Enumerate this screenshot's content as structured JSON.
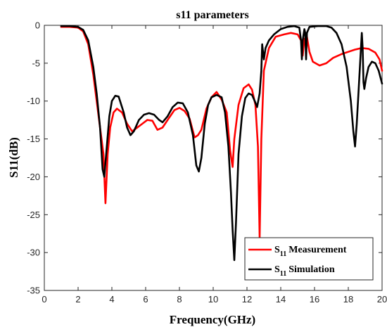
{
  "chart_data": {
    "type": "line",
    "title": "s11 parameters",
    "xlabel": "Frequency(GHz)",
    "ylabel": "S11(dB)",
    "xlim": [
      0,
      20
    ],
    "ylim": [
      -35,
      0
    ],
    "xticks": [
      0,
      2,
      4,
      6,
      8,
      10,
      12,
      14,
      16,
      18,
      20
    ],
    "yticks": [
      0,
      -5,
      -10,
      -15,
      -20,
      -25,
      -30,
      -35
    ],
    "grid": false,
    "legend_position": "bottom-right",
    "series": [
      {
        "name_main": "S",
        "name_sub": "11",
        "name_rest": "Measurement",
        "color": "#ff0000",
        "points": [
          [
            1.0,
            -0.2
          ],
          [
            1.5,
            -0.2
          ],
          [
            2.0,
            -0.3
          ],
          [
            2.3,
            -0.8
          ],
          [
            2.6,
            -2.5
          ],
          [
            2.9,
            -6.5
          ],
          [
            3.1,
            -10.0
          ],
          [
            3.3,
            -13.5
          ],
          [
            3.5,
            -17.0
          ],
          [
            3.62,
            -23.5
          ],
          [
            3.75,
            -17.0
          ],
          [
            3.9,
            -13.5
          ],
          [
            4.1,
            -11.5
          ],
          [
            4.3,
            -11.0
          ],
          [
            4.6,
            -11.5
          ],
          [
            4.9,
            -13.0
          ],
          [
            5.2,
            -14.0
          ],
          [
            5.5,
            -13.5
          ],
          [
            5.8,
            -13.0
          ],
          [
            6.1,
            -12.5
          ],
          [
            6.4,
            -12.6
          ],
          [
            6.7,
            -13.8
          ],
          [
            7.0,
            -13.5
          ],
          [
            7.3,
            -12.5
          ],
          [
            7.7,
            -11.2
          ],
          [
            8.0,
            -10.9
          ],
          [
            8.3,
            -11.3
          ],
          [
            8.6,
            -12.3
          ],
          [
            8.9,
            -14.8
          ],
          [
            9.1,
            -14.5
          ],
          [
            9.3,
            -13.8
          ],
          [
            9.6,
            -11.0
          ],
          [
            9.9,
            -9.5
          ],
          [
            10.2,
            -8.8
          ],
          [
            10.5,
            -9.8
          ],
          [
            10.8,
            -11.5
          ],
          [
            11.0,
            -16.5
          ],
          [
            11.15,
            -18.7
          ],
          [
            11.25,
            -15.0
          ],
          [
            11.5,
            -10.5
          ],
          [
            11.8,
            -8.3
          ],
          [
            12.1,
            -7.8
          ],
          [
            12.3,
            -8.5
          ],
          [
            12.5,
            -10.5
          ],
          [
            12.65,
            -16.0
          ],
          [
            12.75,
            -28.0
          ],
          [
            12.85,
            -15.0
          ],
          [
            13.0,
            -6.0
          ],
          [
            13.3,
            -3.0
          ],
          [
            13.7,
            -1.5
          ],
          [
            14.2,
            -1.2
          ],
          [
            14.6,
            -1.0
          ],
          [
            15.0,
            -1.2
          ],
          [
            15.2,
            -2.0
          ],
          [
            15.3,
            -4.0
          ],
          [
            15.4,
            -1.8
          ],
          [
            15.55,
            -1.5
          ],
          [
            15.7,
            -3.5
          ],
          [
            15.9,
            -4.8
          ],
          [
            16.3,
            -5.3
          ],
          [
            16.7,
            -5.0
          ],
          [
            17.1,
            -4.3
          ],
          [
            17.6,
            -3.8
          ],
          [
            18.0,
            -3.5
          ],
          [
            18.4,
            -3.2
          ],
          [
            18.8,
            -3.0
          ],
          [
            19.2,
            -3.1
          ],
          [
            19.6,
            -3.6
          ],
          [
            19.85,
            -4.5
          ],
          [
            20.0,
            -6.0
          ]
        ]
      },
      {
        "name_main": "S",
        "name_sub": "11",
        "name_rest": "Simulation",
        "color": "#000000",
        "points": [
          [
            1.0,
            -0.1
          ],
          [
            1.5,
            -0.1
          ],
          [
            2.0,
            -0.2
          ],
          [
            2.3,
            -0.6
          ],
          [
            2.6,
            -2.0
          ],
          [
            2.9,
            -5.5
          ],
          [
            3.1,
            -9.0
          ],
          [
            3.3,
            -13.5
          ],
          [
            3.45,
            -19.0
          ],
          [
            3.55,
            -20.0
          ],
          [
            3.7,
            -16.0
          ],
          [
            3.85,
            -12.0
          ],
          [
            4.0,
            -10.0
          ],
          [
            4.2,
            -9.3
          ],
          [
            4.4,
            -9.4
          ],
          [
            4.7,
            -11.5
          ],
          [
            4.9,
            -13.5
          ],
          [
            5.1,
            -14.5
          ],
          [
            5.3,
            -14.0
          ],
          [
            5.6,
            -12.5
          ],
          [
            5.9,
            -11.8
          ],
          [
            6.2,
            -11.6
          ],
          [
            6.5,
            -11.8
          ],
          [
            6.8,
            -12.5
          ],
          [
            7.0,
            -12.8
          ],
          [
            7.3,
            -12.0
          ],
          [
            7.6,
            -10.8
          ],
          [
            7.9,
            -10.2
          ],
          [
            8.2,
            -10.3
          ],
          [
            8.5,
            -11.5
          ],
          [
            8.8,
            -14.5
          ],
          [
            9.0,
            -18.5
          ],
          [
            9.15,
            -19.3
          ],
          [
            9.3,
            -17.5
          ],
          [
            9.5,
            -13.0
          ],
          [
            9.7,
            -10.5
          ],
          [
            9.9,
            -9.5
          ],
          [
            10.2,
            -9.2
          ],
          [
            10.5,
            -9.5
          ],
          [
            10.7,
            -11.5
          ],
          [
            10.9,
            -16.0
          ],
          [
            11.05,
            -22.0
          ],
          [
            11.15,
            -27.0
          ],
          [
            11.25,
            -31.0
          ],
          [
            11.35,
            -26.0
          ],
          [
            11.5,
            -17.0
          ],
          [
            11.7,
            -12.0
          ],
          [
            11.9,
            -9.6
          ],
          [
            12.1,
            -9.0
          ],
          [
            12.3,
            -9.2
          ],
          [
            12.5,
            -10.2
          ],
          [
            12.6,
            -10.8
          ],
          [
            12.75,
            -9.0
          ],
          [
            12.85,
            -6.0
          ],
          [
            12.9,
            -2.5
          ],
          [
            12.95,
            -3.5
          ],
          [
            13.0,
            -4.5
          ],
          [
            13.1,
            -3.0
          ],
          [
            13.3,
            -2.0
          ],
          [
            13.6,
            -1.2
          ],
          [
            14.0,
            -0.5
          ],
          [
            14.4,
            -0.2
          ],
          [
            14.8,
            -0.1
          ],
          [
            15.1,
            -0.3
          ],
          [
            15.2,
            -2.0
          ],
          [
            15.25,
            -4.5
          ],
          [
            15.3,
            -2.0
          ],
          [
            15.4,
            -0.5
          ],
          [
            15.45,
            -1.0
          ],
          [
            15.5,
            -4.5
          ],
          [
            15.55,
            -1.0
          ],
          [
            15.7,
            -0.2
          ],
          [
            16.2,
            -0.1
          ],
          [
            16.7,
            -0.1
          ],
          [
            17.0,
            -0.3
          ],
          [
            17.3,
            -1.0
          ],
          [
            17.6,
            -2.5
          ],
          [
            17.9,
            -5.5
          ],
          [
            18.15,
            -10.0
          ],
          [
            18.3,
            -14.0
          ],
          [
            18.4,
            -16.0
          ],
          [
            18.5,
            -13.0
          ],
          [
            18.65,
            -7.0
          ],
          [
            18.75,
            -3.0
          ],
          [
            18.8,
            -1.0
          ],
          [
            18.85,
            -3.0
          ],
          [
            18.9,
            -7.5
          ],
          [
            18.95,
            -8.4
          ],
          [
            19.05,
            -7.0
          ],
          [
            19.2,
            -5.5
          ],
          [
            19.4,
            -4.8
          ],
          [
            19.6,
            -5.0
          ],
          [
            19.8,
            -6.0
          ],
          [
            20.0,
            -7.7
          ]
        ]
      }
    ]
  }
}
